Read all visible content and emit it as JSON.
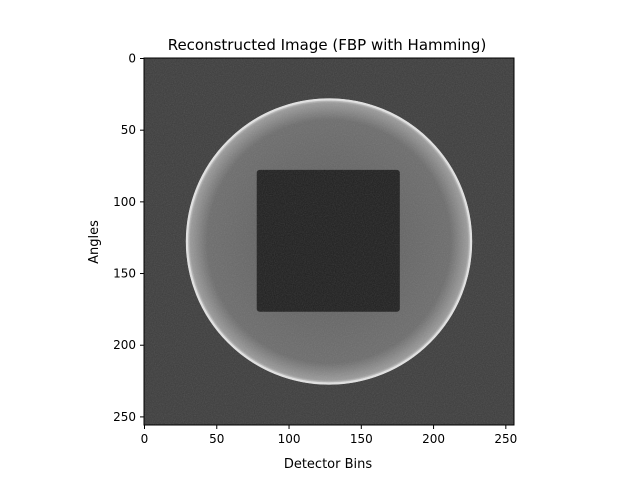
{
  "figure": {
    "title": "Reconstructed Image (FBP with Hamming)",
    "xlabel": "Detector Bins",
    "ylabel": "Angles",
    "xticks": [
      "0",
      "50",
      "100",
      "150",
      "200",
      "250"
    ],
    "yticks": [
      "0",
      "50",
      "100",
      "150",
      "200",
      "250"
    ]
  },
  "image": {
    "colormap": "gray",
    "data_extent": [
      0,
      256
    ],
    "background_gray": "#3c3c3c",
    "disk": {
      "center_x": 128,
      "center_y": 128,
      "radius": 99,
      "fill": "#6a6a6a",
      "rim": "#e6e6e6"
    },
    "square": {
      "x_range": [
        78,
        177
      ],
      "y_range": [
        78,
        177
      ],
      "fill": "#1e1e1e"
    }
  }
}
